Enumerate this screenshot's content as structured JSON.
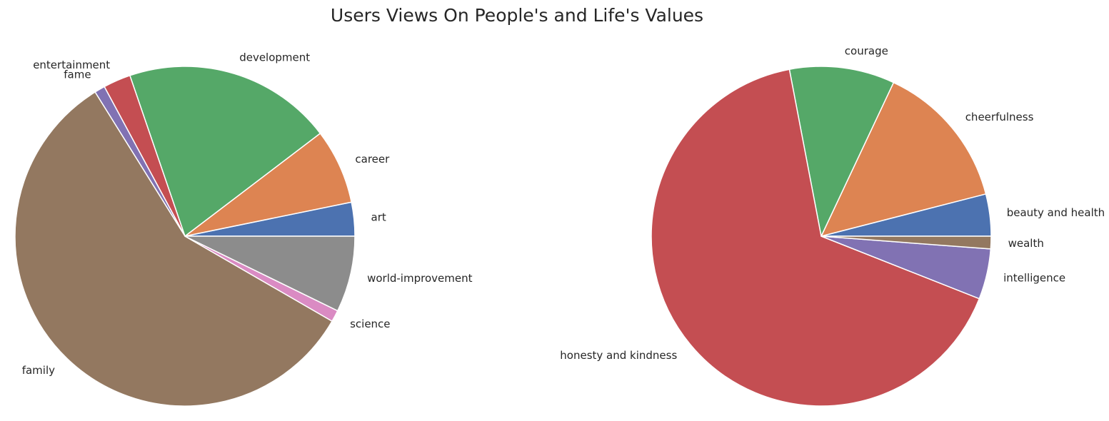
{
  "title": "Users Views On People's and Life's Values",
  "chart_data": [
    {
      "type": "pie",
      "categories": [
        "art",
        "career",
        "development",
        "entertainment",
        "fame",
        "family",
        "science",
        "world-improvement"
      ],
      "values": [
        3.2,
        7.1,
        19.8,
        2.6,
        1.0,
        57.5,
        1.1,
        7.2
      ],
      "colors": [
        "#4c72b0",
        "#dd8452",
        "#55a868",
        "#c44e52",
        "#8172b3",
        "#937860",
        "#da8bc3",
        "#8c8c8c"
      ],
      "start_angle_deg": 0,
      "direction": "counterclockwise"
    },
    {
      "type": "pie",
      "categories": [
        "beauty and health",
        "cheerfulness",
        "courage",
        "honesty and kindness",
        "intelligence",
        "wealth"
      ],
      "values": [
        4.0,
        14.0,
        10.0,
        66.0,
        4.8,
        1.2
      ],
      "colors": [
        "#4c72b0",
        "#dd8452",
        "#55a868",
        "#c44e52",
        "#8172b3",
        "#937860"
      ],
      "start_angle_deg": 0,
      "direction": "counterclockwise"
    }
  ]
}
